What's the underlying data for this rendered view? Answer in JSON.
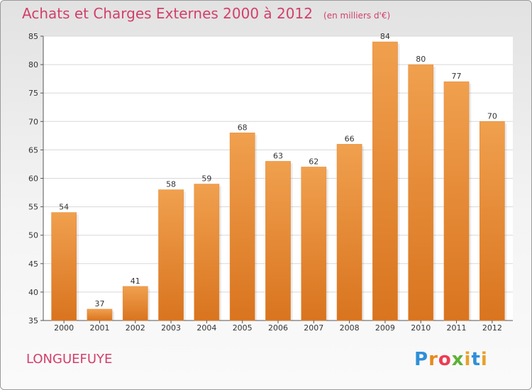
{
  "chart_data": {
    "type": "bar",
    "title": "Achats et Charges Externes 2000 à 2012",
    "subtitle": "(en milliers d'€)",
    "categories": [
      "2000",
      "2001",
      "2002",
      "2003",
      "2004",
      "2005",
      "2006",
      "2007",
      "2008",
      "2009",
      "2010",
      "2011",
      "2012"
    ],
    "values": [
      54,
      37,
      41,
      58,
      59,
      68,
      63,
      62,
      66,
      84,
      80,
      77,
      70
    ],
    "ylim": [
      35,
      85
    ],
    "yticks": [
      35,
      40,
      45,
      50,
      55,
      60,
      65,
      70,
      75,
      80,
      85
    ],
    "grid": true,
    "bar_color": "#f0a04e",
    "bar_color_bottom": "#d9741f"
  },
  "location": "LONGUEFUYE",
  "logo_text": [
    "P",
    "r",
    "o",
    "x",
    "i",
    "t",
    "i"
  ],
  "colors": {
    "title": "#d23f6a",
    "grid": "#d8d8d8"
  }
}
